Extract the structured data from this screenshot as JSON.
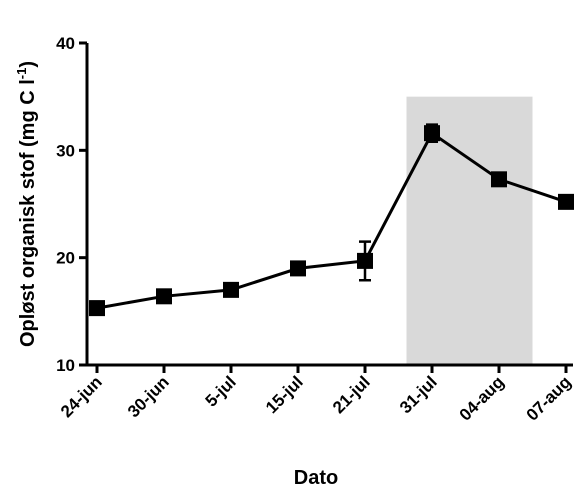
{
  "chart_data": {
    "type": "line",
    "x_label": "Dato",
    "y_label": {
      "text": "Opløst organisk stof (mg C l",
      "superscript": "-1",
      "end": ")"
    },
    "categories": [
      "24-jun",
      "30-jun",
      "5-jul",
      "15-jul",
      "21-jul",
      "31-jul",
      "04-aug",
      "07-aug"
    ],
    "series": [
      {
        "color": "#000000",
        "values": [
          15.3,
          16.4,
          17.0,
          19.0,
          19.7,
          31.6,
          27.3,
          25.2
        ],
        "errors": [
          0.5,
          0.6,
          0.4,
          0.5,
          1.8,
          0.8,
          0.5,
          0.5
        ]
      }
    ],
    "shaded_ylim": [
      10,
      35
    ],
    "shaded_color": "#d9d9d9",
    "ylim": [
      10,
      40
    ],
    "yticks": [
      10,
      20,
      30,
      40
    ],
    "grid": false
  }
}
